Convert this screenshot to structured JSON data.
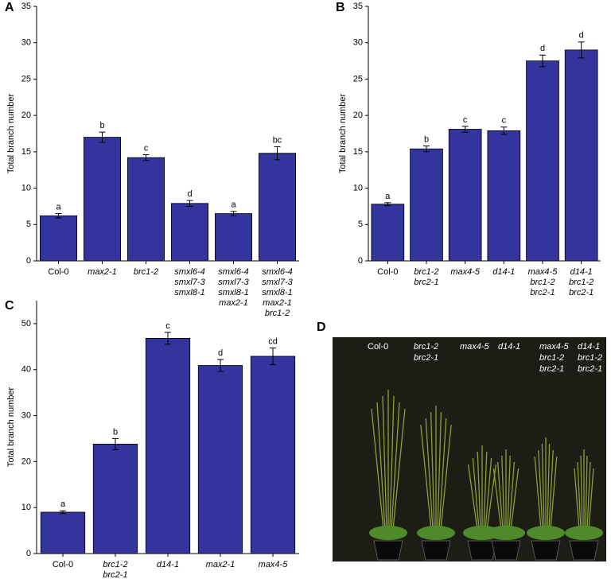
{
  "chart_data": [
    {
      "type": "bar",
      "panel_label": "A",
      "y_label": "Total branch number",
      "categories": [
        [
          "Col-0"
        ],
        [
          "max2-1"
        ],
        [
          "brc1-2"
        ],
        [
          "smxl6-4",
          "smxl7-3",
          "smxl8-1"
        ],
        [
          "smxl6-4",
          "smxl7-3",
          "smxl8-1",
          "max2-1"
        ],
        [
          "smxl6-4",
          "smxl7-3",
          "smxl8-1",
          "max2-1",
          "brc1-2"
        ]
      ],
      "values": [
        6.2,
        17.0,
        14.2,
        7.9,
        6.5,
        14.8
      ],
      "errors": [
        0.3,
        0.7,
        0.4,
        0.4,
        0.3,
        0.9
      ],
      "annotations": [
        "a",
        "b",
        "c",
        "d",
        "a",
        "bc"
      ],
      "color": "#34349e",
      "ylim": [
        0,
        35
      ],
      "yticks": [
        0,
        5,
        10,
        15,
        20,
        25,
        30,
        35
      ]
    },
    {
      "type": "bar",
      "panel_label": "B",
      "y_label": "Total branch number",
      "categories": [
        [
          "Col-0"
        ],
        [
          "brc1-2",
          "brc2-1"
        ],
        [
          "max4-5"
        ],
        [
          "d14-1"
        ],
        [
          "max4-5",
          "brc1-2",
          "brc2-1"
        ],
        [
          "d14-1",
          "brc1-2",
          "brc2-1"
        ]
      ],
      "values": [
        7.8,
        15.4,
        18.1,
        17.9,
        27.5,
        29.0
      ],
      "errors": [
        0.2,
        0.4,
        0.4,
        0.5,
        0.8,
        1.1
      ],
      "annotations": [
        "a",
        "b",
        "c",
        "c",
        "d",
        "d"
      ],
      "color": "#34349e",
      "ylim": [
        0,
        35
      ],
      "yticks": [
        0,
        5,
        10,
        15,
        20,
        25,
        30,
        35
      ]
    },
    {
      "type": "bar",
      "panel_label": "C",
      "y_label": "Total branch number",
      "categories": [
        [
          "Col-0"
        ],
        [
          "brc1-2",
          "brc2-1"
        ],
        [
          "d14-1"
        ],
        [
          "max2-1"
        ],
        [
          "max4-5"
        ]
      ],
      "values": [
        9.0,
        23.8,
        46.8,
        40.9,
        42.9
      ],
      "errors": [
        0.3,
        1.2,
        1.3,
        1.3,
        1.8
      ],
      "annotations": [
        "a",
        "b",
        "c",
        "d",
        "cd"
      ],
      "color": "#34349e",
      "ylim": [
        0,
        55
      ],
      "yticks": [
        0,
        10,
        20,
        30,
        40,
        50
      ]
    },
    {
      "type": "image",
      "panel_label": "D",
      "labels": [
        [
          "Col-0"
        ],
        [
          "brc1-2",
          "brc2-1"
        ],
        [
          "max4-5"
        ],
        [
          "d14-1"
        ],
        [
          "max4-5",
          "brc1-2",
          "brc2-1"
        ],
        [
          "d14-1",
          "brc1-2",
          "brc2-1"
        ]
      ]
    }
  ]
}
